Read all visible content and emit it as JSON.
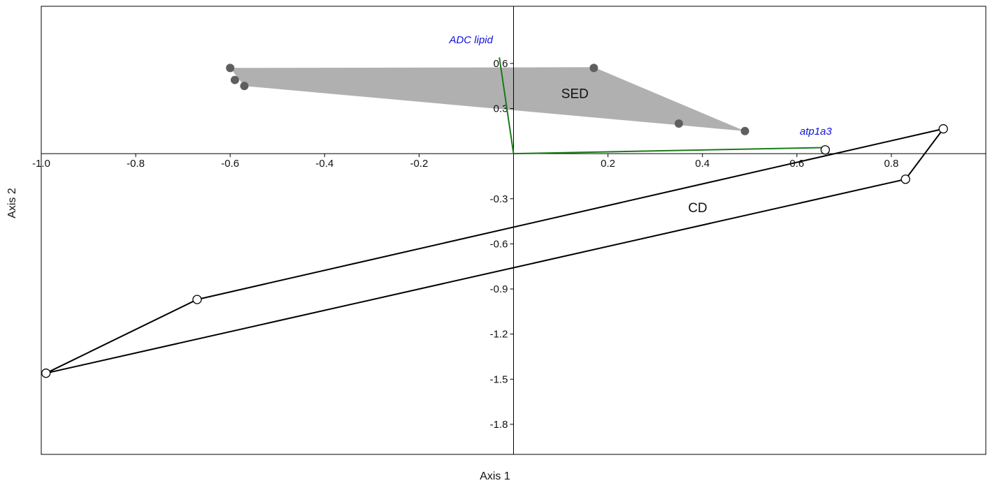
{
  "chart_data": {
    "type": "scatter",
    "title": "",
    "xlabel": "Axis 1",
    "ylabel": "Axis 2",
    "xlim": [
      -1.0,
      1.0
    ],
    "ylim": [
      -2.0,
      0.98
    ],
    "x_ticks": [
      -1.0,
      -0.8,
      -0.6,
      -0.4,
      -0.2,
      0.2,
      0.4,
      0.6,
      0.8
    ],
    "x_tick_labels": [
      "-1.0",
      "-0.8",
      "-0.6",
      "-0.4",
      "-0.2",
      "0.2",
      "0.4",
      "0.6",
      "0.8"
    ],
    "y_ticks": [
      0.6,
      0.3,
      -0.3,
      -0.6,
      -0.9,
      -1.2,
      -1.5,
      -1.8
    ],
    "y_tick_labels": [
      "0.6",
      "0.3",
      "-0.3",
      "-0.6",
      "-0.9",
      "-1.2",
      "-1.5",
      "-1.8"
    ],
    "grid": false,
    "groups": [
      {
        "name": "SED",
        "marker": "filled",
        "hull_fill": "#b0b0b0",
        "point_color": "#5f5f5f",
        "label_pos": [
          0.13,
          0.37
        ],
        "points": [
          [
            -0.6,
            0.57
          ],
          [
            -0.59,
            0.49
          ],
          [
            -0.57,
            0.45
          ],
          [
            0.17,
            0.57
          ],
          [
            0.35,
            0.2
          ],
          [
            0.49,
            0.15
          ]
        ],
        "hull": [
          [
            -0.6,
            0.57
          ],
          [
            0.17,
            0.575
          ],
          [
            0.49,
            0.15
          ],
          [
            -0.57,
            0.45
          ]
        ]
      },
      {
        "name": "CD",
        "marker": "open",
        "hull_stroke": "#000000",
        "label_pos": [
          0.39,
          -0.39
        ],
        "points": [
          [
            -0.67,
            -0.97
          ],
          [
            -0.99,
            -1.46
          ],
          [
            0.66,
            0.025
          ],
          [
            0.91,
            0.165
          ],
          [
            0.83,
            -0.17
          ]
        ],
        "hull": [
          [
            -0.99,
            -1.46
          ],
          [
            -0.67,
            -0.97
          ],
          [
            0.91,
            0.165
          ],
          [
            0.83,
            -0.17
          ]
        ]
      }
    ],
    "vectors": [
      {
        "label": "ADC lipid",
        "x": -0.03,
        "y": 0.64,
        "line_color": "#1a7a1a",
        "label_color": "#1010e0",
        "label_anchor": [
          -0.09,
          0.735
        ]
      },
      {
        "label": "atp1a3",
        "x": 0.655,
        "y": 0.04,
        "line_color": "#1a7a1a",
        "label_color": "#1010e0",
        "label_anchor": [
          0.64,
          0.125
        ]
      }
    ]
  }
}
